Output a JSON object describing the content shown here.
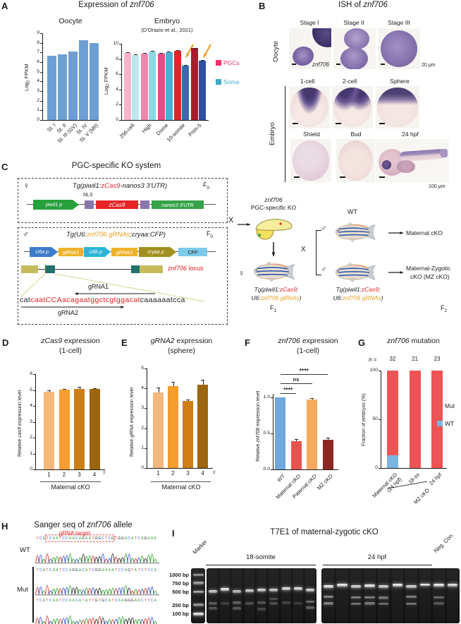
{
  "panelA": {
    "label": "A",
    "title_prefix": "Expression of ",
    "title_gene": "znf706",
    "legend": [
      {
        "label": "PGCs",
        "color": "#ed2e68"
      },
      {
        "label": "Soma",
        "color": "#3fa9c9"
      }
    ]
  },
  "panelB": {
    "label": "B",
    "title_prefix": "ISH of ",
    "title_gene": "znf706",
    "row_oocyte": "Oocyte",
    "row_embryo": "Embryo",
    "oocyte_stages": [
      "Stage I",
      "Stage II",
      "Stage III"
    ],
    "embryo_stages_row1": [
      "1-cell",
      "2-cell",
      "Sphere"
    ],
    "embryo_stages_row2": [
      "Shield",
      "Bud",
      "24 hpf"
    ],
    "gene_label": "znf706",
    "scale_oocyte": "20 μm",
    "scale_embryo": "100 μm"
  },
  "panelC": {
    "label": "C",
    "title": "PGC-specific KO system",
    "female": "♀",
    "male": "♂",
    "f_label": "F",
    "f0_sub": "0",
    "f1_sub": "1",
    "f2_sub": "2",
    "tg1": [
      "Tg(piwil1:",
      "zCas9",
      "-nanos3 3'UTR)"
    ],
    "nls": "NLS",
    "construct1": {
      "promoter": "piwil1 p",
      "cas9": "zCas9",
      "utr": "nanos3 3'UTR"
    },
    "tg2": [
      "Tg(U6:",
      "znf706 gRNAs",
      ";cryaa:CFP)"
    ],
    "construct2": {
      "u6a": "U6a p",
      "grna1": "gRNA1",
      "u6b": "U6b p",
      "grna2": "gRNA2",
      "cryaa": "cryaa p",
      "cfp": "CFP"
    },
    "locus_gene": "znf706",
    "locus_word": " locus",
    "grna1_label": "gRNA1",
    "grna2_label": "gRNA2",
    "seq": [
      "cat",
      "caatCCAacagaatggctcgtggacat",
      "caaaaaatcca"
    ],
    "cross": "X",
    "ko_label": [
      "znf706",
      "PGC-specific KO"
    ],
    "wt": "WT",
    "arrow_maternal": "Maternal cKO",
    "arrow_mz": [
      "Maternal-Zygotic",
      "cKO (MZ cKO)"
    ],
    "tg_fish_line1": [
      "Tg(piwil1:",
      "zCas9",
      ";"
    ],
    "tg_fish_line2": [
      "U6:",
      "znf706 gRNAs",
      ")"
    ]
  },
  "panelD": {
    "label": "D"
  },
  "panelE": {
    "label": "E"
  },
  "panelF": {
    "label": "F"
  },
  "panelG": {
    "label": "G"
  },
  "panelH": {
    "label": "H",
    "title": [
      "Sanger seq of ",
      "znf706",
      " allele"
    ],
    "grna_target": "gRNA target",
    "wt": "WT",
    "mut": "Mut",
    "wt_seq": "TCATCAATCCAACAGAATGGCTCGTGGACATCAGAAA",
    "mut_seqs": [
      "TCATCAATCCAGGACATCGGAAAATCCAGTATCTCCA",
      "TCATCAATCCAACATATTGTGCATCAAGGGAACTTCA"
    ],
    "target_span": [
      3,
      24
    ],
    "base_colors": {
      "A": "#2ea12e",
      "C": "#2c4fd8",
      "G": "#222222",
      "T": "#d93025"
    }
  },
  "panelI": {
    "label": "I",
    "title": "T7E1 of maternal-zygotic cKO",
    "marker": "Marker",
    "groups": [
      "18-somite",
      "24 hpf"
    ],
    "neg": "Neg. Con.",
    "bp_labels": [
      "1000 bp",
      "750 bp",
      "500 bp",
      "250 bp",
      "100 bp"
    ],
    "bp_fracs": [
      0.12,
      0.27,
      0.43,
      0.67,
      0.83
    ],
    "marker_bands": [
      [
        0.12,
        0.6
      ],
      [
        0.27,
        0.65
      ],
      [
        0.43,
        0.7
      ],
      [
        0.67,
        0.6
      ],
      [
        0.83,
        1.0
      ]
    ],
    "gel1_lanes": [
      [
        [
          0.42,
          0.85
        ],
        [
          0.64,
          0.3
        ],
        [
          0.73,
          0.28
        ]
      ],
      [
        [
          0.385,
          1.0
        ],
        [
          0.64,
          0.18
        ]
      ],
      [
        [
          0.42,
          0.8
        ],
        [
          0.63,
          0.35
        ],
        [
          0.73,
          0.3
        ]
      ],
      [
        [
          0.41,
          0.85
        ],
        [
          0.64,
          0.25
        ]
      ],
      [
        [
          0.4,
          0.9
        ],
        [
          0.63,
          0.28
        ],
        [
          0.74,
          0.22
        ]
      ],
      [
        [
          0.395,
          0.85
        ],
        [
          0.56,
          0.25
        ],
        [
          0.64,
          0.25
        ]
      ],
      [
        [
          0.375,
          0.95
        ],
        [
          0.63,
          0.2
        ]
      ],
      [
        [
          0.375,
          0.95
        ],
        [
          0.64,
          0.15
        ]
      ],
      [
        [
          0.395,
          0.9
        ],
        [
          0.61,
          0.4
        ],
        [
          0.72,
          0.35
        ]
      ]
    ],
    "gel2_lanes": [
      [
        [
          0.33,
          1.0
        ],
        [
          0.52,
          0.55
        ],
        [
          0.64,
          0.5
        ]
      ],
      [
        [
          0.31,
          1.0
        ]
      ],
      [
        [
          0.33,
          0.9
        ],
        [
          0.53,
          0.5
        ],
        [
          0.65,
          0.45
        ]
      ],
      [
        [
          0.32,
          1.0
        ],
        [
          0.53,
          0.5
        ],
        [
          0.64,
          0.45
        ]
      ],
      [
        [
          0.33,
          0.9
        ],
        [
          0.54,
          0.45
        ],
        [
          0.65,
          0.4
        ]
      ],
      [
        [
          0.31,
          1.0
        ]
      ],
      [
        [
          0.33,
          0.9
        ],
        [
          0.52,
          0.5
        ],
        [
          0.65,
          0.45
        ]
      ],
      [
        [
          0.3,
          1.0
        ]
      ],
      [
        [
          0.31,
          1.0
        ],
        [
          0.53,
          0.4
        ],
        [
          0.64,
          0.3
        ]
      ],
      [
        [
          0.31,
          0.95
        ]
      ]
    ]
  },
  "chart_data": [
    {
      "id": "A_oocyte",
      "type": "bar",
      "title": "Oocyte",
      "ylabel": "Log2 FPKM",
      "ylabel_pre": "Log",
      "ylabel_sub": "2",
      "ylabel_post": " FPKM",
      "ylim": [
        0,
        9
      ],
      "yticks": [
        0,
        1,
        2,
        3,
        4,
        5,
        6,
        7,
        8,
        9
      ],
      "categories": [
        "St. I",
        "St. II",
        "St. III (GV)",
        "St. IV",
        "St. V (MII)"
      ],
      "values": [
        6.65,
        6.8,
        7.1,
        8.3,
        8.0
      ],
      "bar_color": "#6d9fd4"
    },
    {
      "id": "A_embryo",
      "type": "grouped_bar",
      "title": "Embryo",
      "subtitle": "(D'Orazio et al., 2021)",
      "ylabel": "Log2 FPKM",
      "ylabel_pre": "Log",
      "ylabel_sub": "2",
      "ylabel_post": " FPKM",
      "ylim": [
        0,
        10
      ],
      "yticks": [
        0,
        2,
        4,
        6,
        8,
        10
      ],
      "categories": [
        "256-cell",
        "High",
        "Dome",
        "10-somite",
        "Prim-5"
      ],
      "series": [
        {
          "name": "PGCs",
          "values": [
            8.8,
            8.7,
            8.7,
            9.05,
            9.4
          ],
          "errors": [
            0.12,
            0.1,
            0.12,
            0.1,
            0.08
          ],
          "colors": [
            "#f4b6ce",
            "#ef86ae",
            "#e84a86",
            "#e3232a",
            "#a41e2c"
          ]
        },
        {
          "name": "Soma",
          "values": [
            8.5,
            9.0,
            8.9,
            7.1,
            7.75
          ],
          "errors": [
            0.15,
            0.12,
            0.1,
            0.15,
            0.1
          ],
          "colors": [
            "#bfe5ef",
            "#92d6e6",
            "#49b0d5",
            "#3b69b1",
            "#2e4f9f"
          ]
        }
      ],
      "highlight_arrows": {
        "color": "#f0a030",
        "targets": [
          "Soma 10-somite",
          "Soma Prim-5"
        ]
      }
    },
    {
      "id": "D_cas9",
      "type": "bar",
      "title_italic": "zCas9",
      "title_rest": " expression",
      "subtitle": "(1-cell)",
      "ylabel_pre": "Relative ",
      "ylabel_italic": "cas9",
      "ylabel_post": " expression level",
      "ylim": [
        0,
        6
      ],
      "yticks": [
        0,
        1,
        2,
        3,
        4,
        5,
        6
      ],
      "categories": [
        "1",
        "2",
        "3",
        "4"
      ],
      "values": [
        4.88,
        5.02,
        5.07,
        5.06
      ],
      "errors": [
        0.1,
        0.05,
        0.12,
        0.06
      ],
      "colors": [
        "#f5b87c",
        "#f59d2e",
        "#cd7e17",
        "#9c660e"
      ],
      "x_symbol": "♀",
      "x_group": "Maternal cKO"
    },
    {
      "id": "E_grna2",
      "type": "bar",
      "title_italic": "gRNA2",
      "title_rest": " expression",
      "subtitle": "(sphere)",
      "ylabel_pre": "Relative ",
      "ylabel_italic": "gRNA",
      "ylabel_post": " expression level",
      "ylim": [
        0,
        5
      ],
      "yticks": [
        0,
        1,
        2,
        3,
        4,
        5
      ],
      "categories": [
        "1",
        "2",
        "3",
        "4"
      ],
      "values": [
        3.8,
        4.13,
        3.38,
        4.2
      ],
      "errors": [
        0.25,
        0.18,
        0.07,
        0.25
      ],
      "colors": [
        "#f5b87c",
        "#f59d2e",
        "#cd7e17",
        "#9c660e"
      ],
      "x_symbol": "♀",
      "x_group": "Maternal cKO"
    },
    {
      "id": "F_znf706",
      "type": "bar",
      "title_italic": "znf706",
      "title_rest": " expression",
      "subtitle": "(1-cell)",
      "ylabel_pre": "Relative ",
      "ylabel_italic": "znf706",
      "ylabel_post": " expression level",
      "ylim": [
        0,
        1.0
      ],
      "yticks": [
        "0.0",
        "0.5",
        "1.0"
      ],
      "categories": [
        "WT",
        "Maternal cKO",
        "Paternal cKO",
        "MZ cKO"
      ],
      "values": [
        1.0,
        0.39,
        0.97,
        0.41
      ],
      "errors": [
        0,
        0.03,
        0.02,
        0.03
      ],
      "colors": [
        "#6fa8dc",
        "#e7544f",
        "#f5a95e",
        "#8c2723"
      ],
      "significance": [
        {
          "from": 0,
          "to": 3,
          "label": "****"
        },
        {
          "from": 0,
          "to": 2,
          "label": "ns"
        },
        {
          "from": 0,
          "to": 1,
          "label": "****"
        }
      ]
    },
    {
      "id": "G_mutation",
      "type": "stacked_bar",
      "title_italic": "znf706",
      "title_rest": " mutation",
      "n_label": "n =",
      "n_values": [
        32,
        21,
        23
      ],
      "ylabel": "Fraction of embryos (%)",
      "ylim": [
        0,
        100
      ],
      "yticks": [
        0,
        50,
        100
      ],
      "categories": [
        [
          "Maternal cKO",
          "(24 hpf)"
        ],
        [
          "18-ss"
        ],
        [
          "24 hpf"
        ]
      ],
      "series": [
        {
          "name": "Mut",
          "color": "#ee5355",
          "values": [
            87,
            100,
            100
          ]
        },
        {
          "name": "WT",
          "color": "#7cb4e0",
          "values": [
            13,
            0,
            0
          ]
        }
      ],
      "legend": [
        {
          "label": "Mut",
          "color": "#ee5355"
        },
        {
          "label": "WT",
          "color": "#7cb4e0"
        }
      ],
      "bracket_label": "MZ cKO"
    }
  ]
}
